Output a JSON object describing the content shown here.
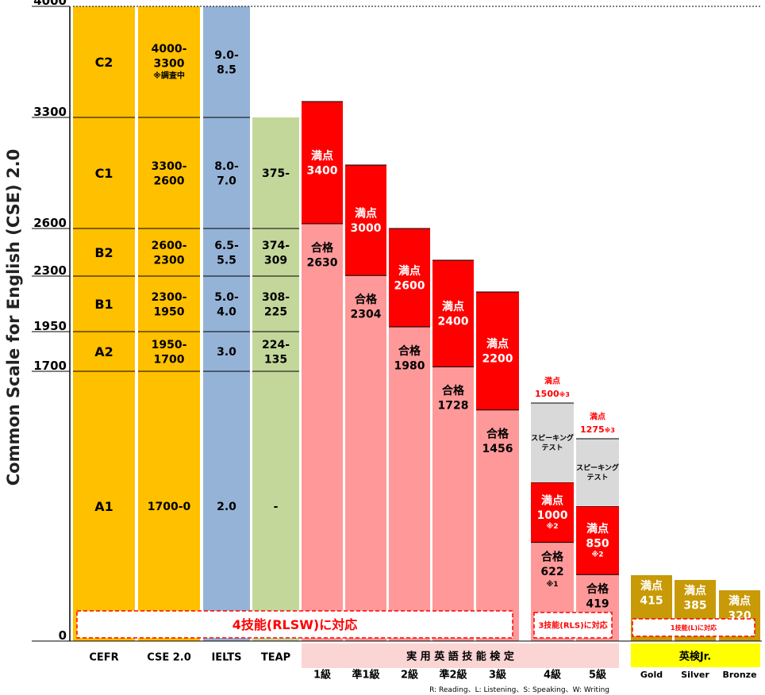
{
  "chart_data": {
    "type": "bar",
    "ylabel": "Common Scale for English (CSE) 2.0",
    "ylim": [
      0,
      4000
    ],
    "y_ticks": [
      0,
      1700,
      1950,
      2300,
      2600,
      3300,
      4000
    ],
    "reference_scales": [
      {
        "name": "CEFR",
        "color": "#ffc000",
        "bands": [
          {
            "label": "C2",
            "range": [
              3300,
              4000
            ]
          },
          {
            "label": "C1",
            "range": [
              2600,
              3300
            ]
          },
          {
            "label": "B2",
            "range": [
              2300,
              2600
            ]
          },
          {
            "label": "B1",
            "range": [
              1950,
              2300
            ]
          },
          {
            "label": "A2",
            "range": [
              1700,
              1950
            ]
          },
          {
            "label": "A1",
            "range": [
              0,
              1700
            ]
          }
        ]
      },
      {
        "name": "CSE 2.0",
        "color": "#ffc000",
        "bands": [
          {
            "label": "4000-\n3300",
            "note": "※調査中",
            "range": [
              3300,
              4000
            ]
          },
          {
            "label": "3300-\n2600",
            "range": [
              2600,
              3300
            ]
          },
          {
            "label": "2600-\n2300",
            "range": [
              2300,
              2600
            ]
          },
          {
            "label": "2300-\n1950",
            "range": [
              1950,
              2300
            ]
          },
          {
            "label": "1950-\n1700",
            "range": [
              1700,
              1950
            ]
          },
          {
            "label": "1700-0",
            "range": [
              0,
              1700
            ]
          }
        ]
      },
      {
        "name": "IELTS",
        "color": "#95b3d7",
        "bands": [
          {
            "label": "9.0-\n8.5",
            "range": [
              3300,
              4000
            ]
          },
          {
            "label": "8.0-\n7.0",
            "range": [
              2600,
              3300
            ]
          },
          {
            "label": "6.5-\n5.5",
            "range": [
              2300,
              2600
            ]
          },
          {
            "label": "5.0-\n4.0",
            "range": [
              1950,
              2300
            ]
          },
          {
            "label": "3.0",
            "range": [
              1700,
              1950
            ]
          },
          {
            "label": "2.0",
            "range": [
              0,
              1700
            ]
          }
        ]
      },
      {
        "name": "TEAP",
        "color": "#c4d79b",
        "top": 3300,
        "bands": [
          {
            "label": "375-",
            "range": [
              2600,
              3300
            ]
          },
          {
            "label": "374-\n309",
            "range": [
              2300,
              2600
            ]
          },
          {
            "label": "308-\n225",
            "range": [
              1950,
              2300
            ]
          },
          {
            "label": "224-\n135",
            "range": [
              1700,
              1950
            ]
          },
          {
            "label": "-",
            "range": [
              0,
              1700
            ]
          }
        ]
      }
    ],
    "eiken": {
      "group_label": "実 用 英 語 技 能 検 定",
      "grades": [
        {
          "label": "1級",
          "full": 3400,
          "pass": 2630,
          "full_text": "満点\n3400",
          "pass_text": "合格\n2630"
        },
        {
          "label": "準1級",
          "full": 3000,
          "pass": 2304,
          "full_text": "満点\n3000",
          "pass_text": "合格\n2304"
        },
        {
          "label": "2級",
          "full": 2600,
          "pass": 1980,
          "full_text": "満点\n2600",
          "pass_text": "合格\n1980"
        },
        {
          "label": "準2級",
          "full": 2400,
          "pass": 1728,
          "full_text": "満点\n2400",
          "pass_text": "合格\n1728"
        },
        {
          "label": "3級",
          "full": 2200,
          "pass": 1456,
          "full_text": "満点\n2200",
          "pass_text": "合格\n1456"
        },
        {
          "label": "4級",
          "full": 1000,
          "pass": 622,
          "speaking_top": 1500,
          "full_text": "満点\n1000",
          "full_note": "※2",
          "pass_text": "合格\n622",
          "pass_note": "※1",
          "speaking_label": "スピーキング\nテスト",
          "total_label": "満点",
          "total_value": "1500",
          "total_note": "※3"
        },
        {
          "label": "5級",
          "full": 850,
          "pass": 419,
          "speaking_top": 1275,
          "full_text": "満点\n850",
          "full_note": "※2",
          "pass_text": "合格\n419",
          "pass_note": "※1",
          "speaking_label": "スピーキング\nテスト",
          "total_label": "満点",
          "total_value": "1275",
          "total_note": "※3"
        }
      ]
    },
    "eiken_jr": {
      "group_label": "英検Jr.",
      "levels": [
        {
          "label": "Gold",
          "full": 415,
          "text": "満点\n415"
        },
        {
          "label": "Silver",
          "full": 385,
          "text": "満点\n385"
        },
        {
          "label": "Bronze",
          "full": 320,
          "text": "満点\n320"
        }
      ]
    },
    "annotations": [
      {
        "text": "4技能(RLSW)に対応"
      },
      {
        "text": "3技能(RLS)に対応"
      },
      {
        "text": "1技能(L)に対応"
      },
      {
        "text": "R: Reading、L: Listening、S: Speaking、W: Writing"
      }
    ],
    "colors": {
      "cefr": "#ffc000",
      "ielts": "#95b3d7",
      "teap": "#c4d79b",
      "eiken_full": "#ff0000",
      "eiken_pass": "#ff9999",
      "speaking": "#d9d9d9",
      "jr": "#c89a07",
      "eiken_header": "#fbd4d4",
      "jr_header": "#ffff00",
      "dashed": "#ff0000"
    }
  }
}
